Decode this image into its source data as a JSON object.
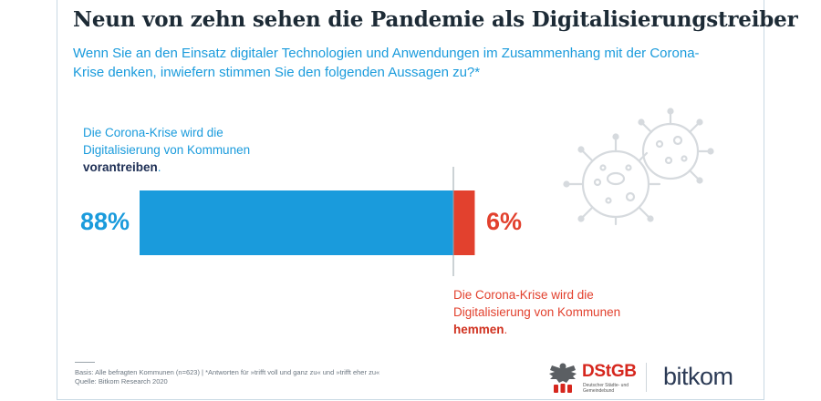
{
  "title": "Neun von zehn sehen die Pandemie als Digitalisierungstreiber",
  "subtitle": "Wenn Sie an den Einsatz digitaler Technologien und Anwendungen im Zusammenhang mit der Corona-Krise denken, inwiefern stimmen Sie den folgenden Aussagen zu?*",
  "chart_data": {
    "type": "bar",
    "orientation": "horizontal-diverging",
    "categories": [
      "vorantreiben",
      "hemmen"
    ],
    "series": [
      {
        "name": "Die Corona-Krise wird die Digitalisierung von Kommunen vorantreiben.",
        "value": 88,
        "color": "#1a9bdc"
      },
      {
        "name": "Die Corona-Krise wird die Digitalisierung von Kommunen hemmen.",
        "value": 6,
        "color": "#e2412e"
      }
    ],
    "unit": "%",
    "xlim": [
      0,
      100
    ]
  },
  "labels": {
    "blue": {
      "text": "Die Corona-Krise wird die Digitalisierung von Kommunen",
      "emphasis": "vorantreiben",
      "suffix": "."
    },
    "red": {
      "text": "Die Corona-Krise wird die Digitalisierung von Kommunen",
      "emphasis": "hemmen",
      "suffix": "."
    },
    "blue_pct": "88%",
    "red_pct": "6%"
  },
  "footnote": {
    "line1": "Basis: Alle befragten Kommunen (n=623) | *Antworten für »trifft voll und ganz zu« und »trifft eher zu«",
    "line2": "Quelle: Bitkom Research 2020"
  },
  "logos": {
    "dstgb_name": "DStGB",
    "dstgb_sub": "Deutscher Städte- und Gemeindebund",
    "bitkom": "bitkom"
  },
  "colors": {
    "accent": "#1a9bdc",
    "negative": "#e2412e",
    "title": "#1d2b36"
  },
  "icons": [
    "virus-icon",
    "eagle-emblem-icon"
  ]
}
